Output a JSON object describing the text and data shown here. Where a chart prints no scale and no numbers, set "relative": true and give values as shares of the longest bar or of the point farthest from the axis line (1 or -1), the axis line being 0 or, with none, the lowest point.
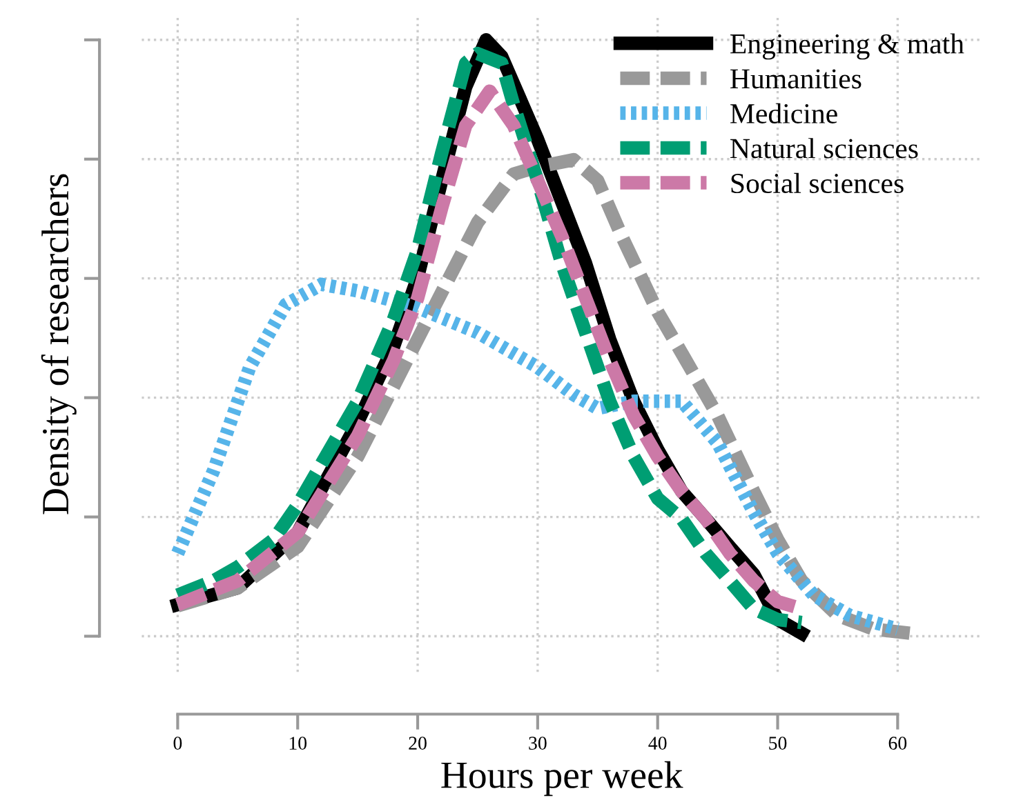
{
  "chart_data": {
    "type": "line",
    "relative": true,
    "xlabel": "Hours per week",
    "ylabel": "Density of researchers",
    "xlim": [
      -3,
      67
    ],
    "xticks": [
      0,
      10,
      20,
      30,
      40,
      50,
      60
    ],
    "grid": true,
    "legend": "top right",
    "series": [
      {
        "name": "Engineering & math",
        "color": "#000000",
        "line_style": "solid",
        "x": [
          0,
          5,
          10,
          15,
          18,
          20,
          22,
          24,
          25.7,
          27,
          28,
          30,
          32,
          34,
          36,
          38,
          40,
          42,
          44,
          46,
          48,
          50,
          52
        ],
        "values": [
          0.053,
          0.081,
          0.174,
          0.359,
          0.486,
          0.602,
          0.764,
          0.921,
          1,
          0.972,
          0.926,
          0.833,
          0.729,
          0.625,
          0.498,
          0.394,
          0.313,
          0.243,
          0.197,
          0.15,
          0.104,
          0.028,
          0.005
        ]
      },
      {
        "name": "Humanities",
        "color": "#999999",
        "line_style": "dashed",
        "x": [
          0,
          5,
          10,
          15,
          20,
          25,
          28,
          30,
          33,
          35,
          37,
          40,
          42,
          45,
          48,
          50,
          52,
          55,
          58,
          61
        ],
        "values": [
          0.051,
          0.081,
          0.15,
          0.301,
          0.498,
          0.694,
          0.775,
          0.787,
          0.799,
          0.764,
          0.671,
          0.544,
          0.475,
          0.37,
          0.243,
          0.162,
          0.093,
          0.035,
          0.012,
          0.005
        ]
      },
      {
        "name": "Medicine",
        "color": "#56b4e9",
        "line_style": "dotted",
        "x": [
          0,
          3,
          6,
          9,
          12,
          15,
          20,
          25,
          30,
          33,
          35,
          38,
          42,
          45,
          48,
          50,
          53,
          56,
          60
        ],
        "values": [
          0.139,
          0.278,
          0.451,
          0.556,
          0.59,
          0.579,
          0.551,
          0.509,
          0.451,
          0.405,
          0.382,
          0.394,
          0.394,
          0.324,
          0.208,
          0.139,
          0.069,
          0.035,
          0.012
        ]
      },
      {
        "name": "Natural sciences",
        "color": "#009e73",
        "line_style": "dashed",
        "x": [
          0,
          3,
          5,
          8,
          10,
          15,
          18,
          20,
          22,
          24,
          25,
          27,
          28,
          30,
          32,
          34,
          36,
          38,
          40,
          42,
          44,
          46,
          48,
          50,
          52
        ],
        "values": [
          0.069,
          0.093,
          0.116,
          0.162,
          0.22,
          0.394,
          0.532,
          0.648,
          0.81,
          0.961,
          0.977,
          0.961,
          0.891,
          0.764,
          0.625,
          0.509,
          0.394,
          0.301,
          0.231,
          0.197,
          0.139,
          0.093,
          0.046,
          0.028,
          0.023
        ]
      },
      {
        "name": "Social sciences",
        "color": "#cc79a7",
        "line_style": "dashed",
        "x": [
          0,
          5,
          10,
          15,
          18,
          20,
          22,
          24,
          26,
          28,
          30,
          32,
          34,
          36,
          38,
          40,
          42,
          44,
          46,
          48,
          50,
          52
        ],
        "values": [
          0.053,
          0.093,
          0.174,
          0.336,
          0.463,
          0.567,
          0.718,
          0.856,
          0.914,
          0.856,
          0.764,
          0.671,
          0.567,
          0.463,
          0.37,
          0.301,
          0.243,
          0.197,
          0.139,
          0.093,
          0.058,
          0.046
        ]
      }
    ]
  }
}
